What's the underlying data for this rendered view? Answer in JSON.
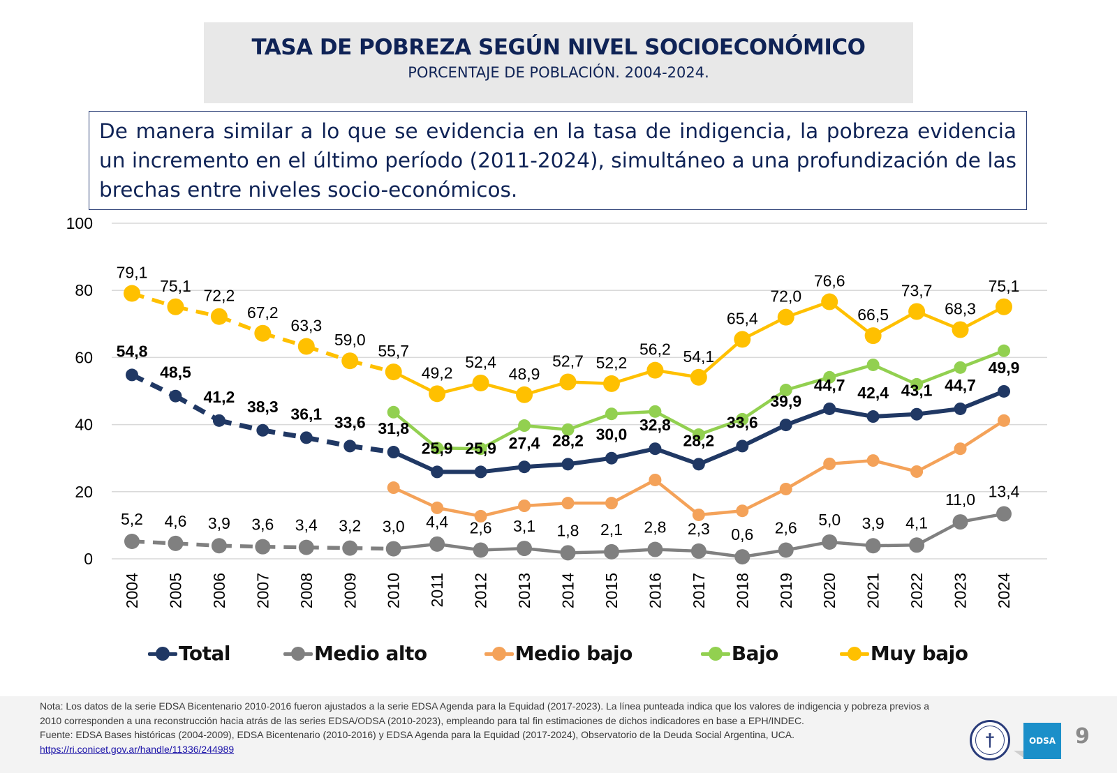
{
  "header": {
    "title": "TASA DE POBREZA SEGÚN NIVEL SOCIOECONÓMICO",
    "subtitle": "PORCENTAJE DE POBLACIÓN. 2004-2024."
  },
  "summary": "De manera similar a lo que se evidencia en la tasa de indigencia, la pobreza evidencia un incremento en el último período (2011-2024), simultáneo a una profundización de las brechas entre niveles socio-económicos.",
  "chart_data": {
    "type": "line",
    "title": "TASA DE POBREZA SEGÚN NIVEL SOCIOECONÓMICO",
    "subtitle": "PORCENTAJE DE POBLACIÓN. 2004-2024.",
    "xlabel": "",
    "ylabel": "",
    "x": [
      "2004",
      "2005",
      "2006",
      "2007",
      "2008",
      "2009",
      "2010",
      "2011",
      "2012",
      "2013",
      "2014",
      "2015",
      "2016",
      "2017",
      "2018",
      "2019",
      "2020",
      "2021",
      "2022",
      "2023",
      "2024"
    ],
    "ylim": [
      0,
      100
    ],
    "yticks": [
      0,
      20,
      40,
      60,
      80,
      100
    ],
    "grid": true,
    "legend_position": "bottom",
    "dashed_until": "2010",
    "series": [
      {
        "name": "Muy bajo",
        "color": "#ffc000",
        "labels_shown": true,
        "label_bold": false,
        "values": [
          79.1,
          75.1,
          72.2,
          67.2,
          63.3,
          59.0,
          55.7,
          49.2,
          52.4,
          48.9,
          52.7,
          52.2,
          56.2,
          54.1,
          65.4,
          72.0,
          76.6,
          66.5,
          73.7,
          68.3,
          75.1
        ],
        "labels": [
          "79,1",
          "75,1",
          "72,2",
          "67,2",
          "63,3",
          "59,0",
          "55,7",
          "49,2",
          "52,4",
          "48,9",
          "52,7",
          "52,2",
          "56,2",
          "54,1",
          "65,4",
          "72,0",
          "76,6",
          "66,5",
          "73,7",
          "68,3",
          "75,1"
        ]
      },
      {
        "name": "Bajo",
        "color": "#92d050",
        "labels_shown": false,
        "values": [
          null,
          null,
          null,
          null,
          null,
          null,
          43.7,
          33.0,
          32.8,
          39.7,
          38.5,
          43.2,
          43.9,
          37.0,
          41.6,
          50.3,
          54.1,
          57.8,
          52.0,
          57.0,
          62.0
        ]
      },
      {
        "name": "Total",
        "color": "#203864",
        "labels_shown": true,
        "label_bold": true,
        "values": [
          54.8,
          48.5,
          41.2,
          38.3,
          36.1,
          33.6,
          31.8,
          25.9,
          25.9,
          27.4,
          28.2,
          30.0,
          32.8,
          28.2,
          33.6,
          39.9,
          44.7,
          42.4,
          43.1,
          44.7,
          49.9
        ],
        "labels": [
          "54,8",
          "48,5",
          "41,2",
          "38,3",
          "36,1",
          "33,6",
          "31,8",
          "25,9",
          "25,9",
          "27,4",
          "28,2",
          "30,0",
          "32,8",
          "28,2",
          "33,6",
          "39,9",
          "44,7",
          "42,4",
          "43,1",
          "44,7",
          "49,9"
        ]
      },
      {
        "name": "Medio bajo",
        "color": "#f4a259",
        "labels_shown": false,
        "values": [
          null,
          null,
          null,
          null,
          null,
          null,
          21.2,
          15.2,
          12.7,
          15.8,
          16.6,
          16.6,
          23.5,
          13.1,
          14.3,
          20.8,
          28.3,
          29.3,
          26.0,
          32.8,
          41.2
        ]
      },
      {
        "name": "Medio alto",
        "color": "#808080",
        "labels_shown": true,
        "label_bold": false,
        "values": [
          5.2,
          4.6,
          3.9,
          3.6,
          3.4,
          3.2,
          3.0,
          4.4,
          2.6,
          3.1,
          1.8,
          2.1,
          2.8,
          2.3,
          0.6,
          2.6,
          5.0,
          3.9,
          4.1,
          11.0,
          13.4
        ],
        "labels": [
          "5,2",
          "4,6",
          "3,9",
          "3,6",
          "3,4",
          "3,2",
          "3,0",
          "4,4",
          "2,6",
          "3,1",
          "1,8",
          "2,1",
          "2,8",
          "2,3",
          "0,6",
          "2,6",
          "5,0",
          "3,9",
          "4,1",
          "11,0",
          "13,4"
        ]
      }
    ],
    "legend": [
      {
        "name": "Total",
        "color": "#203864"
      },
      {
        "name": "Medio alto",
        "color": "#808080"
      },
      {
        "name": "Medio bajo",
        "color": "#f4a259"
      },
      {
        "name": "Bajo",
        "color": "#92d050"
      },
      {
        "name": "Muy bajo",
        "color": "#ffc000"
      }
    ]
  },
  "footer": {
    "note": "Nota: Los datos de la serie EDSA Bicentenario 2010-2016 fueron ajustados a la serie EDSA Agenda para la Equidad (2017-2023). La línea punteada indica que los valores de indigencia y pobreza previos a 2010 corresponden a una reconstrucción hacia atrás de las series EDSA/ODSA (2010-2023), empleando para tal fin estimaciones de dichos indicadores en base a EPH/INDEC.",
    "source": "Fuente: EDSA Bases históricas (2004-2009), EDSA Bicentenario (2010-2016) y EDSA Agenda para la Equidad (2017-2024), Observatorio de la Deuda Social Argentina, UCA.",
    "link": "https://ri.conicet.gov.ar/handle/11336/244989",
    "logo_seal_icon": "university-seal-icon",
    "odsa_label": "ODSA",
    "page_number": "9"
  }
}
